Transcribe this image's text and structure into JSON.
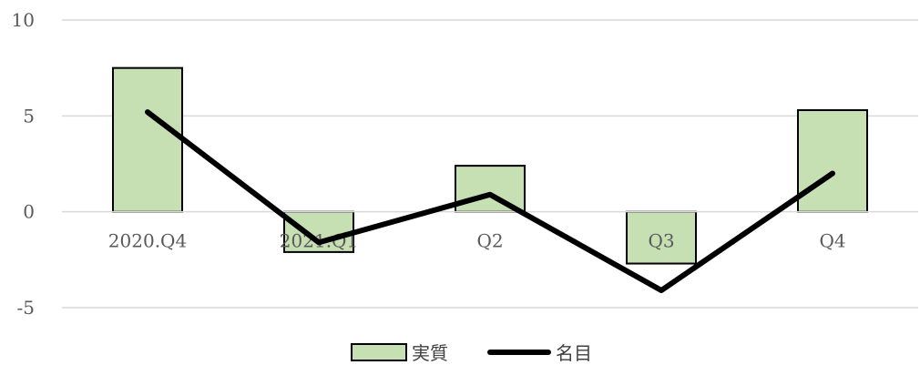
{
  "chart_data": {
    "type": "bar",
    "categories": [
      "2020.Q4",
      "2021.Q1",
      "Q2",
      "Q3",
      "Q4"
    ],
    "series": [
      {
        "name": "実質",
        "type": "bar",
        "color": "#c6e0b4",
        "stroke": "#000000",
        "values": [
          7.5,
          -2.1,
          2.4,
          -2.7,
          5.3
        ]
      },
      {
        "name": "名目",
        "type": "line",
        "color": "#000000",
        "values": [
          5.2,
          -1.6,
          0.9,
          -4.1,
          2.0
        ]
      }
    ],
    "ylim": [
      -5,
      10
    ],
    "yticks": [
      10,
      5,
      0,
      -5
    ],
    "grid": true,
    "legend": "bottom",
    "title": "",
    "xlabel": "",
    "ylabel": ""
  }
}
